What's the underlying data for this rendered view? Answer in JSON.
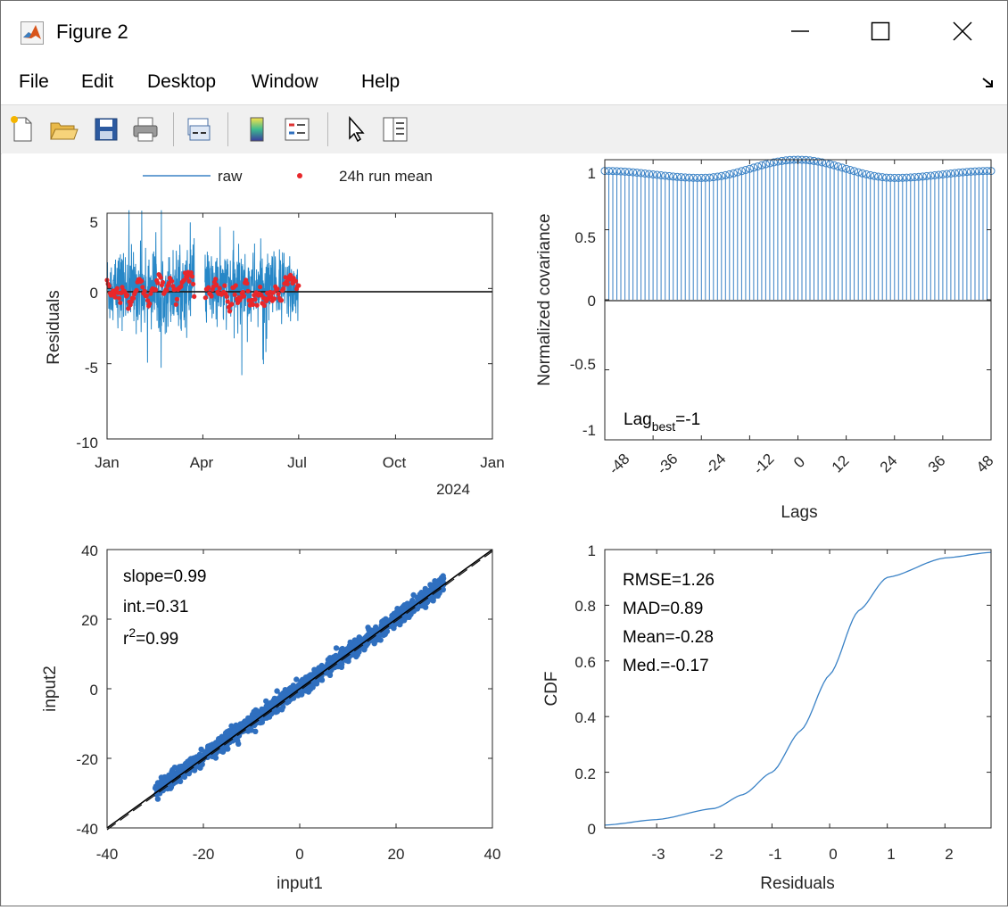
{
  "window": {
    "title": "Figure 2"
  },
  "menu": [
    "File",
    "Edit",
    "Desktop",
    "Window",
    "Help"
  ],
  "toolbar_icons": [
    "new-file-icon",
    "open-folder-icon",
    "save-icon",
    "print-icon",
    "link-plot-icon",
    "colorbar-icon",
    "legend-icon",
    "pointer-icon",
    "property-inspector-icon"
  ],
  "panels": {
    "timeseries": {
      "legend": {
        "raw": "raw",
        "mean": "24h run mean"
      },
      "ylabel": "Residuals",
      "yticks": [
        "5",
        "0",
        "-5",
        "-10"
      ],
      "xticks": [
        "Jan",
        "Apr",
        "Jul",
        "Oct",
        "Jan"
      ],
      "year": "2024"
    },
    "covariance": {
      "ylabel": "Normalized covariance",
      "xlabel": "Lags",
      "yticks": [
        "1",
        "0.5",
        "0",
        "-0.5",
        "-1"
      ],
      "xticks": [
        "-48",
        "-36",
        "-24",
        "-12",
        "0",
        "12",
        "24",
        "36",
        "48"
      ],
      "lag_label": "Lag",
      "lag_sub": "best",
      "lag_value": "=-1"
    },
    "scatter": {
      "xlabel": "input1",
      "ylabel": "input2",
      "xticks": [
        "-40",
        "-20",
        "0",
        "20",
        "40"
      ],
      "yticks": [
        "40",
        "20",
        "0",
        "-20",
        "-40"
      ],
      "slope": "slope=0.99",
      "int": "int.=0.31",
      "r2_prefix": "r",
      "r2_sup": "2",
      "r2_value": "=0.99"
    },
    "cdf": {
      "xlabel": "Residuals",
      "ylabel": "CDF",
      "xticks": [
        "-3",
        "-2",
        "-1",
        "0",
        "1",
        "2"
      ],
      "yticks": [
        "1",
        "0.8",
        "0.6",
        "0.4",
        "0.2",
        "0"
      ],
      "stats": [
        "RMSE=1.26",
        "MAD=0.89",
        "Mean=-0.28",
        "Med.=-0.17"
      ]
    }
  },
  "chart_data": [
    {
      "type": "line",
      "title": "",
      "xlabel": "",
      "ylabel": "Residuals",
      "xlim": [
        "2024-01-01",
        "2025-01-01"
      ],
      "ylim": [
        -10,
        5
      ],
      "series": [
        {
          "name": "raw",
          "color": "#0072bd",
          "x_range": [
            "2024-01-01",
            "2024-07-01"
          ],
          "y_min": -8.5,
          "y_max": 5.2
        },
        {
          "name": "24h run mean",
          "color": "#e8272b",
          "x_range": [
            "2024-01-01",
            "2024-07-01"
          ],
          "y_min": -2,
          "y_max": 1.5
        }
      ],
      "reference_line_y": 0,
      "legend": "top"
    },
    {
      "type": "bar",
      "title": "",
      "xlabel": "Lags",
      "ylabel": "Normalized covariance",
      "xlim": [
        -48,
        48
      ],
      "ylim": [
        -1,
        1
      ],
      "lags": [
        -48,
        48
      ],
      "values_envelope": [
        [
          -48,
          0.92
        ],
        [
          -24,
          0.87
        ],
        [
          0,
          1.0
        ],
        [
          24,
          0.87
        ],
        [
          48,
          0.92
        ]
      ],
      "best_lag": -1
    },
    {
      "type": "scatter",
      "title": "",
      "xlabel": "input1",
      "ylabel": "input2",
      "xlim": [
        -40,
        40
      ],
      "ylim": [
        -40,
        40
      ],
      "x_range": [
        -30,
        30
      ],
      "fit": {
        "slope": 0.99,
        "intercept": 0.31,
        "r2": 0.99
      }
    },
    {
      "type": "line",
      "title": "",
      "xlabel": "Residuals",
      "ylabel": "CDF",
      "xlim": [
        -3.9,
        2.8
      ],
      "ylim": [
        0,
        1
      ],
      "points": [
        [
          -3.9,
          0.01
        ],
        [
          -3,
          0.03
        ],
        [
          -2,
          0.07
        ],
        [
          -1.5,
          0.12
        ],
        [
          -1,
          0.2
        ],
        [
          -0.5,
          0.35
        ],
        [
          0,
          0.55
        ],
        [
          0.5,
          0.78
        ],
        [
          1,
          0.9
        ],
        [
          2,
          0.97
        ],
        [
          2.8,
          0.99
        ]
      ]
    }
  ]
}
